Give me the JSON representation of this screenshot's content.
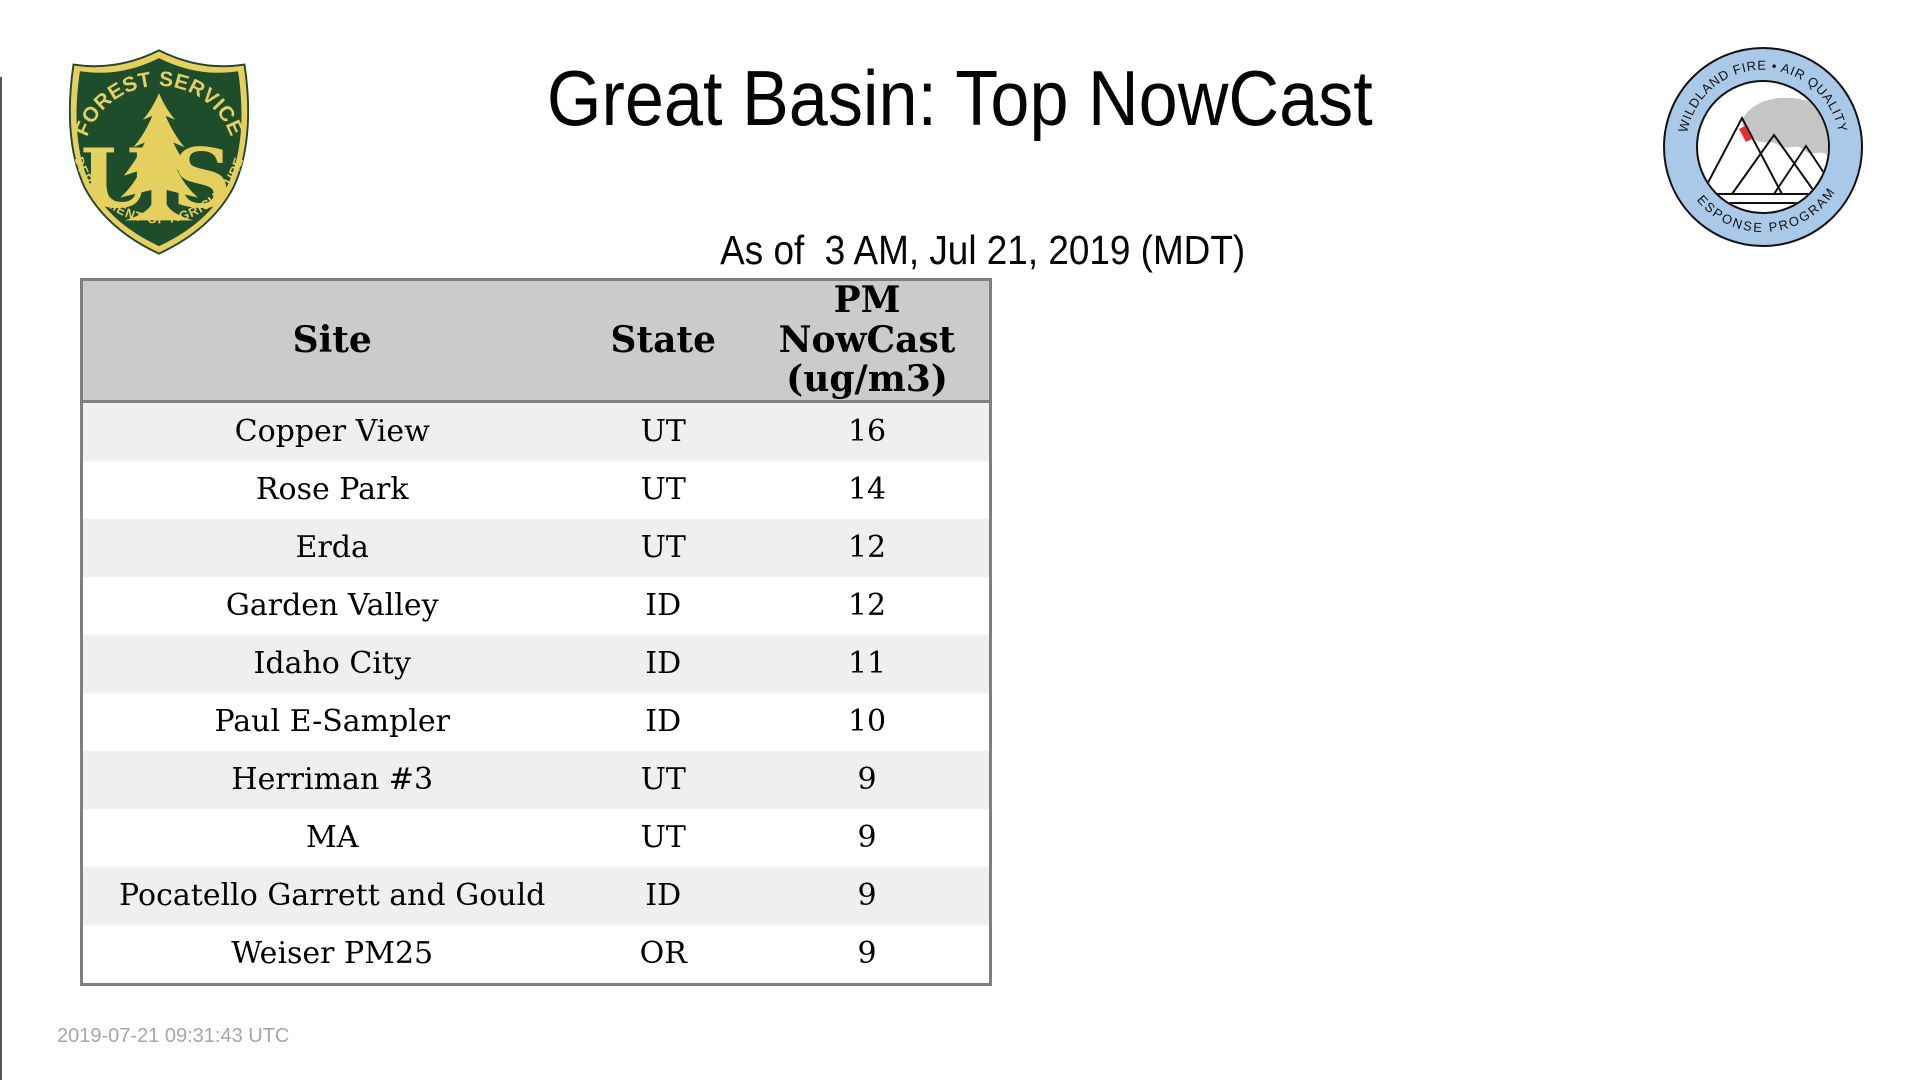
{
  "page": {
    "title": "Great Basin: Top NowCast",
    "subtitle": "As of  3 AM, Jul 21, 2019 (MDT)",
    "footer_timestamp": "2019-07-21 09:31:43 UTC",
    "background": "#ffffff"
  },
  "logos": {
    "forest_service": {
      "top_arc": "FOREST SERVICE",
      "letter_left": "U",
      "letter_right": "S",
      "bottom_arc": "DEPARTMENT OF AGRICULTURE",
      "shield_green": "#1e4d2b",
      "gold": "#e5cf5e"
    },
    "air_quality_program": {
      "top_arc": "WILDLAND FIRE • AIR QUALITY",
      "bottom_arc": "RESPONSE PROGRAM",
      "ring_blue": "#aac9e8",
      "smoke_gray": "#c5c5c5",
      "fire_red": "#e8302a"
    }
  },
  "table": {
    "header": {
      "site": "Site",
      "state": "State",
      "pm_line1": "PM",
      "pm_line2": "NowCast",
      "pm_line3": "(ug/m3)"
    },
    "rows": [
      {
        "site": "Copper View",
        "state": "UT",
        "nowcast": "16"
      },
      {
        "site": "Rose Park",
        "state": "UT",
        "nowcast": "14"
      },
      {
        "site": "Erda",
        "state": "UT",
        "nowcast": "12"
      },
      {
        "site": "Garden Valley",
        "state": "ID",
        "nowcast": "12"
      },
      {
        "site": "Idaho City",
        "state": "ID",
        "nowcast": "11"
      },
      {
        "site": "Paul E-Sampler",
        "state": "ID",
        "nowcast": "10"
      },
      {
        "site": "Herriman #3",
        "state": "UT",
        "nowcast": "9"
      },
      {
        "site": "MA",
        "state": "UT",
        "nowcast": "9"
      },
      {
        "site": "Pocatello Garrett and Gould",
        "state": "ID",
        "nowcast": "9"
      },
      {
        "site": "Weiser PM25",
        "state": "OR",
        "nowcast": "9"
      }
    ],
    "header_bg": "#cbcbcb",
    "alt_row_bg": "#efefef",
    "border_color": "#7f7f7f"
  },
  "chart_data": {
    "type": "table",
    "title": "Great Basin: Top NowCast",
    "subtitle": "As of  3 AM, Jul 21, 2019 (MDT)",
    "columns": [
      "Site",
      "State",
      "PM NowCast (ug/m3)"
    ],
    "rows": [
      [
        "Copper View",
        "UT",
        16
      ],
      [
        "Rose Park",
        "UT",
        14
      ],
      [
        "Erda",
        "UT",
        12
      ],
      [
        "Garden Valley",
        "ID",
        12
      ],
      [
        "Idaho City",
        "ID",
        11
      ],
      [
        "Paul E-Sampler",
        "ID",
        10
      ],
      [
        "Herriman #3",
        "UT",
        9
      ],
      [
        "MA",
        "UT",
        9
      ],
      [
        "Pocatello Garrett and Gould",
        "ID",
        9
      ],
      [
        "Weiser PM25",
        "OR",
        9
      ]
    ]
  }
}
